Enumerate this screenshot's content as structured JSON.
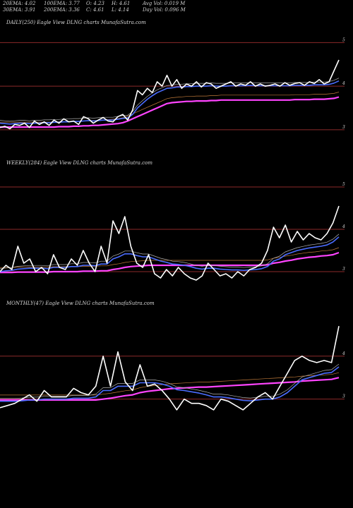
{
  "header": {
    "ema20": "20EMA: 4.02",
    "ema100": "100EMA: 3.77",
    "open": "O: 4.23",
    "high": "H: 4.61",
    "avgvol": "Avg Vol: 0.019 M",
    "ema30": "30EMA: 3.91",
    "ema200": "200EMA: 3.36",
    "close": "C: 4.61",
    "low": "L: 4.14",
    "dayvol": "Day Vol: 0.096  M"
  },
  "colors": {
    "background": "#000000",
    "price": "#ffffff",
    "ema_fast": "#4a6cff",
    "ema_slow": "#ff44ff",
    "gridline": "#8b2a2a"
  },
  "chart_data": [
    {
      "type": "line",
      "title": "DAILY(250) Eagle  View  DLNG charts MunafaSutra.com",
      "yticks": [
        3,
        4,
        5
      ],
      "ylim": [
        2.9,
        5.2
      ],
      "series": [
        {
          "values": [
            3.05,
            3.08,
            3.02,
            3.12,
            3.1,
            3.15,
            3.05,
            3.2,
            3.12,
            3.18,
            3.1,
            3.22,
            3.15,
            3.25,
            3.18,
            3.2,
            3.12,
            3.3,
            3.25,
            3.15,
            3.22,
            3.28,
            3.2,
            3.18,
            3.3,
            3.35,
            3.22,
            3.45,
            3.9,
            3.8,
            3.95,
            3.85,
            4.1,
            4.0,
            4.25,
            4.0,
            4.15,
            3.95,
            4.05,
            4.0,
            4.1,
            3.98,
            4.08,
            4.05,
            3.95,
            4.0,
            4.05,
            4.1,
            4.0,
            4.05,
            4.02,
            4.1,
            4.0,
            4.05,
            4.0,
            4.02,
            4.05,
            4.0,
            4.08,
            4.02,
            4.06,
            4.08,
            4.02,
            4.1,
            4.06,
            4.15,
            4.05,
            4.1,
            4.35,
            4.6
          ]
        },
        {
          "values": [
            3.15,
            3.14,
            3.13,
            3.14,
            3.15,
            3.15,
            3.14,
            3.15,
            3.15,
            3.16,
            3.16,
            3.17,
            3.17,
            3.18,
            3.18,
            3.19,
            3.19,
            3.2,
            3.21,
            3.2,
            3.21,
            3.22,
            3.22,
            3.22,
            3.24,
            3.26,
            3.27,
            3.35,
            3.5,
            3.6,
            3.7,
            3.78,
            3.85,
            3.9,
            3.95,
            3.96,
            3.98,
            3.98,
            3.99,
            3.99,
            4.0,
            4.0,
            4.0,
            4.01,
            4.0,
            4.0,
            4.0,
            4.01,
            4.01,
            4.01,
            4.01,
            4.02,
            4.01,
            4.01,
            4.01,
            4.01,
            4.01,
            4.01,
            4.01,
            4.01,
            4.02,
            4.02,
            4.02,
            4.02,
            4.03,
            4.03,
            4.03,
            4.04,
            4.07,
            4.12
          ]
        },
        {
          "values": [
            3.06,
            3.06,
            3.06,
            3.06,
            3.06,
            3.06,
            3.06,
            3.06,
            3.06,
            3.06,
            3.06,
            3.06,
            3.07,
            3.07,
            3.07,
            3.08,
            3.08,
            3.09,
            3.09,
            3.1,
            3.1,
            3.11,
            3.12,
            3.13,
            3.14,
            3.16,
            3.2,
            3.25,
            3.3,
            3.35,
            3.4,
            3.45,
            3.5,
            3.55,
            3.6,
            3.62,
            3.63,
            3.64,
            3.65,
            3.65,
            3.66,
            3.66,
            3.66,
            3.67,
            3.67,
            3.68,
            3.68,
            3.68,
            3.68,
            3.68,
            3.68,
            3.68,
            3.68,
            3.68,
            3.68,
            3.68,
            3.68,
            3.68,
            3.68,
            3.68,
            3.69,
            3.69,
            3.69,
            3.69,
            3.7,
            3.7,
            3.7,
            3.71,
            3.72,
            3.75
          ]
        }
      ]
    },
    {
      "type": "line",
      "title": "WEEKLY(284) Eagle  View  DLNG charts MunafaSutra.com",
      "yticks": [
        3,
        4,
        5
      ],
      "ylim": [
        2.75,
        5.25
      ],
      "series": [
        {
          "values": [
            3.0,
            3.15,
            3.05,
            3.6,
            3.2,
            3.3,
            3.0,
            3.1,
            2.95,
            3.4,
            3.1,
            3.05,
            3.3,
            3.15,
            3.5,
            3.2,
            3.0,
            3.6,
            3.2,
            4.2,
            3.9,
            4.3,
            3.6,
            3.2,
            3.1,
            3.4,
            2.95,
            2.85,
            3.05,
            2.9,
            3.1,
            2.95,
            2.85,
            2.8,
            2.9,
            3.2,
            3.05,
            2.9,
            2.95,
            2.85,
            3.0,
            2.9,
            3.05,
            3.1,
            3.2,
            3.5,
            4.05,
            3.8,
            4.1,
            3.7,
            3.95,
            3.75,
            3.9,
            3.8,
            3.75,
            3.9,
            4.15,
            4.55
          ]
        },
        {
          "values": [
            3.0,
            3.02,
            3.03,
            3.06,
            3.07,
            3.08,
            3.08,
            3.08,
            3.07,
            3.1,
            3.1,
            3.1,
            3.12,
            3.12,
            3.15,
            3.15,
            3.14,
            3.18,
            3.18,
            3.3,
            3.35,
            3.42,
            3.42,
            3.38,
            3.35,
            3.35,
            3.3,
            3.25,
            3.22,
            3.18,
            3.17,
            3.15,
            3.12,
            3.08,
            3.06,
            3.08,
            3.08,
            3.06,
            3.05,
            3.04,
            3.04,
            3.03,
            3.04,
            3.05,
            3.07,
            3.12,
            3.25,
            3.3,
            3.4,
            3.45,
            3.5,
            3.53,
            3.56,
            3.58,
            3.6,
            3.63,
            3.7,
            3.82
          ]
        },
        {
          "values": [
            2.98,
            2.98,
            2.98,
            2.99,
            2.99,
            2.99,
            2.99,
            2.99,
            2.99,
            3.0,
            3.0,
            3.0,
            3.0,
            3.0,
            3.01,
            3.01,
            3.01,
            3.02,
            3.02,
            3.05,
            3.07,
            3.1,
            3.12,
            3.13,
            3.14,
            3.15,
            3.15,
            3.15,
            3.15,
            3.15,
            3.15,
            3.15,
            3.15,
            3.15,
            3.15,
            3.15,
            3.15,
            3.15,
            3.15,
            3.15,
            3.15,
            3.15,
            3.15,
            3.15,
            3.15,
            3.16,
            3.2,
            3.22,
            3.25,
            3.27,
            3.3,
            3.32,
            3.34,
            3.35,
            3.37,
            3.38,
            3.4,
            3.45
          ]
        }
      ]
    },
    {
      "type": "line",
      "title": "MONTHLY(47) Eagle  View  DLNG charts MunafaSutra.com",
      "yticks": [
        3,
        4
      ],
      "ylim": [
        2.6,
        4.9
      ],
      "series": [
        {
          "values": [
            2.8,
            2.85,
            2.9,
            3.0,
            3.1,
            2.95,
            3.2,
            3.05,
            3.05,
            3.05,
            3.25,
            3.15,
            3.1,
            3.3,
            4.0,
            3.3,
            4.1,
            3.4,
            3.2,
            3.8,
            3.3,
            3.35,
            3.2,
            3.0,
            2.75,
            3.0,
            2.9,
            2.9,
            2.85,
            2.75,
            3.0,
            2.95,
            2.85,
            2.75,
            2.9,
            3.05,
            3.15,
            3.0,
            3.3,
            3.6,
            3.9,
            4.0,
            3.9,
            3.85,
            3.9,
            3.85,
            4.7
          ]
        },
        {
          "values": [
            2.95,
            2.95,
            2.95,
            2.96,
            2.98,
            2.98,
            3.0,
            3.0,
            3.0,
            3.0,
            3.02,
            3.02,
            3.02,
            3.05,
            3.2,
            3.2,
            3.3,
            3.3,
            3.3,
            3.38,
            3.38,
            3.38,
            3.35,
            3.3,
            3.22,
            3.2,
            3.17,
            3.14,
            3.1,
            3.05,
            3.05,
            3.03,
            3.0,
            2.97,
            2.96,
            2.98,
            3.0,
            3.0,
            3.05,
            3.15,
            3.3,
            3.45,
            3.5,
            3.55,
            3.6,
            3.62,
            3.75
          ]
        },
        {
          "values": [
            2.98,
            2.98,
            2.98,
            2.98,
            2.98,
            2.98,
            2.98,
            2.98,
            2.98,
            2.98,
            2.98,
            2.98,
            2.98,
            2.98,
            3.0,
            3.02,
            3.05,
            3.08,
            3.1,
            3.15,
            3.18,
            3.2,
            3.22,
            3.24,
            3.25,
            3.26,
            3.27,
            3.28,
            3.28,
            3.29,
            3.3,
            3.31,
            3.32,
            3.33,
            3.34,
            3.35,
            3.36,
            3.37,
            3.38,
            3.39,
            3.4,
            3.42,
            3.43,
            3.44,
            3.45,
            3.46,
            3.5
          ]
        }
      ]
    }
  ]
}
